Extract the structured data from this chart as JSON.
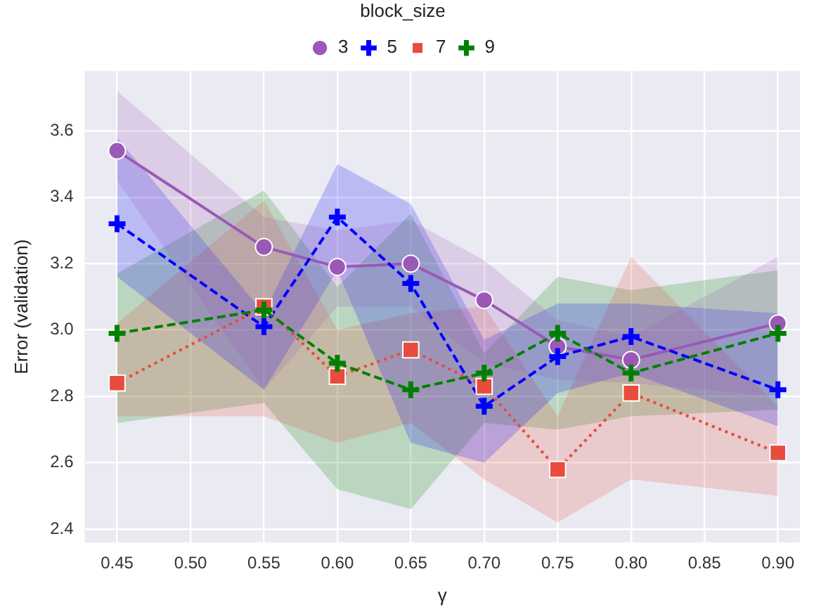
{
  "chart_data": {
    "type": "line",
    "xlabel": "γ",
    "ylabel": "Error (validation)",
    "legend_title": "block_size",
    "legend": "top",
    "grid": true,
    "x": [
      0.45,
      0.55,
      0.6,
      0.65,
      0.7,
      0.75,
      0.8,
      0.9
    ],
    "xlim": [
      0.428,
      0.915
    ],
    "xticks": [
      0.45,
      {
        "value": 0.5,
        "label": "0.50"
      },
      0.55,
      {
        "value": 0.6,
        "label": "0.60"
      },
      0.65,
      {
        "value": 0.7,
        "label": "0.70"
      },
      0.75,
      {
        "value": 0.8,
        "label": "0.80"
      },
      0.85,
      {
        "value": 0.9,
        "label": "0.90"
      }
    ],
    "ylim": [
      2.36,
      3.78
    ],
    "yticks": [
      2.4,
      2.6,
      2.8,
      {
        "value": 3.0,
        "label": "3.0"
      },
      3.2,
      3.4,
      3.6
    ],
    "series": [
      {
        "name": "3",
        "color": "#9b59b6",
        "marker": "circle",
        "line_style": "solid",
        "values": [
          3.54,
          3.25,
          3.19,
          3.2,
          3.09,
          2.95,
          2.91,
          3.02
        ],
        "lower": [
          3.45,
          2.82,
          3.07,
          3.07,
          2.9,
          2.85,
          2.84,
          2.8
        ],
        "upper": [
          3.72,
          3.34,
          3.3,
          3.33,
          3.21,
          3.03,
          2.98,
          3.22
        ]
      },
      {
        "name": "5",
        "color": "#0000ff",
        "marker": "cross",
        "line_style": "dashed",
        "values": [
          3.32,
          3.01,
          3.34,
          3.14,
          2.77,
          2.92,
          2.98,
          2.82
        ],
        "lower": [
          3.16,
          2.82,
          3.18,
          2.66,
          2.6,
          2.81,
          2.87,
          2.71
        ],
        "upper": [
          3.58,
          3.05,
          3.5,
          3.38,
          2.97,
          3.08,
          3.08,
          3.05
        ]
      },
      {
        "name": "7",
        "color": "#e74c3c",
        "marker": "square",
        "line_style": "dotted",
        "values": [
          2.84,
          3.07,
          2.86,
          2.94,
          2.83,
          2.58,
          2.81,
          2.63
        ],
        "lower": [
          2.74,
          2.74,
          2.66,
          2.72,
          2.55,
          2.42,
          2.55,
          2.5
        ],
        "upper": [
          3.02,
          3.39,
          3.0,
          3.05,
          3.07,
          2.74,
          3.22,
          2.77
        ]
      },
      {
        "name": "9",
        "color": "#008000",
        "marker": "cross",
        "line_style": "dashed",
        "values": [
          2.99,
          3.06,
          2.9,
          2.82,
          2.87,
          2.99,
          2.87,
          2.99
        ],
        "lower": [
          2.72,
          2.78,
          2.52,
          2.46,
          2.72,
          2.7,
          2.74,
          2.76
        ],
        "upper": [
          3.17,
          3.42,
          3.13,
          3.35,
          2.93,
          3.16,
          3.12,
          3.18
        ]
      }
    ]
  }
}
